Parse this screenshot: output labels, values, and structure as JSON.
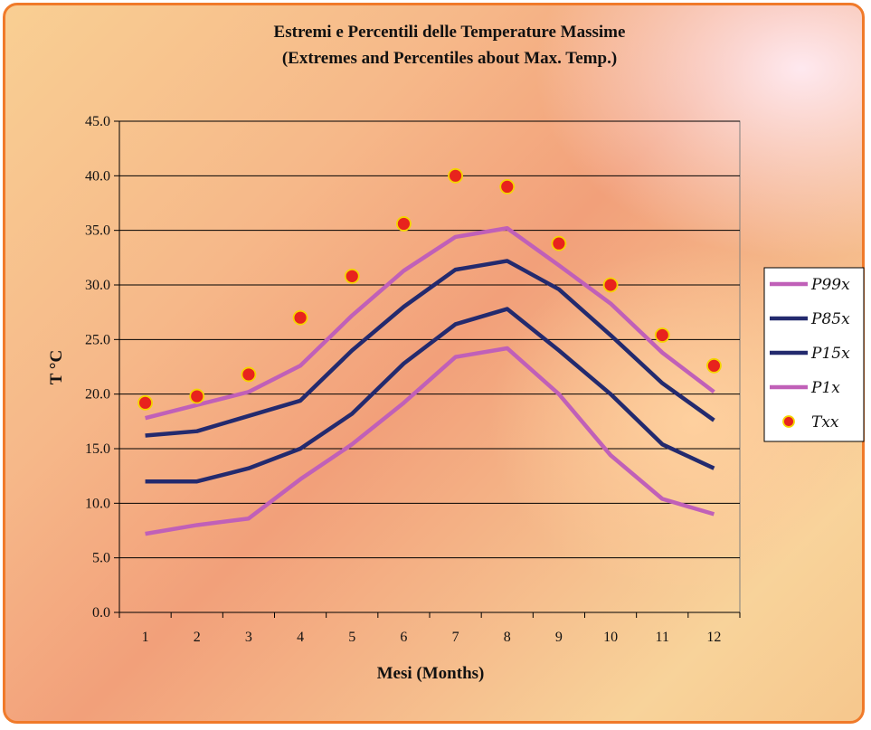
{
  "chart_data": {
    "type": "line",
    "title_line1": "Estremi e Percentili delle Temperature  Massime",
    "title_line2": "(Extremes and Percentiles about Max. Temp.)",
    "xlabel": "Mesi (Months)",
    "ylabel": "T °C",
    "categories": [
      "1",
      "2",
      "3",
      "4",
      "5",
      "6",
      "7",
      "8",
      "9",
      "10",
      "11",
      "12"
    ],
    "y_ticks": [
      "0.0",
      "5.0",
      "10.0",
      "15.0",
      "20.0",
      "25.0",
      "30.0",
      "35.0",
      "40.0",
      "45.0"
    ],
    "ylim": [
      0,
      45
    ],
    "grid": true,
    "legend_position": "right",
    "series": [
      {
        "name": "P99x",
        "kind": "line",
        "color": "#c060b8",
        "values": [
          17.8,
          19.0,
          20.2,
          22.6,
          27.2,
          31.3,
          34.4,
          35.2,
          31.8,
          28.3,
          23.8,
          20.2
        ]
      },
      {
        "name": "P85x",
        "kind": "line",
        "color": "#232a6e",
        "values": [
          16.2,
          16.6,
          18.0,
          19.4,
          24.0,
          28.0,
          31.4,
          32.2,
          29.6,
          25.4,
          21.0,
          17.6
        ]
      },
      {
        "name": "P15x",
        "kind": "line",
        "color": "#232a6e",
        "values": [
          12.0,
          12.0,
          13.2,
          15.0,
          18.2,
          22.8,
          26.4,
          27.8,
          24.0,
          20.0,
          15.4,
          13.2
        ]
      },
      {
        "name": "P1x",
        "kind": "line",
        "color": "#c060b8",
        "values": [
          7.2,
          8.0,
          8.6,
          12.2,
          15.4,
          19.2,
          23.4,
          24.2,
          20.0,
          14.4,
          10.4,
          9.0
        ]
      },
      {
        "name": "Txx",
        "kind": "marker",
        "color": "#e8231d",
        "edge_color": "#f5d400",
        "values": [
          19.2,
          19.8,
          21.8,
          27.0,
          30.8,
          35.6,
          40.0,
          39.0,
          33.8,
          30.0,
          25.4,
          22.6
        ]
      }
    ]
  }
}
